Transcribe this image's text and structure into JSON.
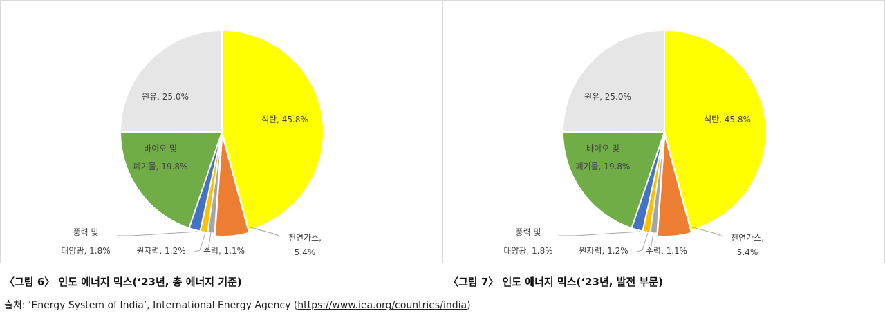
{
  "chart_data": [
    {
      "type": "pie",
      "categories": [
        "석탄",
        "천연가스",
        "수력",
        "원자력",
        "풍력 및 태양광",
        "바이오 및 폐기물",
        "원유"
      ],
      "values": [
        45.8,
        5.4,
        1.1,
        1.2,
        1.8,
        19.8,
        25.0
      ],
      "colors": [
        "#ffff00",
        "#ed7d31",
        "#a5a5a5",
        "#ffc000",
        "#4472c4",
        "#70ad47",
        "#e7e6e6"
      ],
      "data_labels": [
        [
          "석탄, 45.8%"
        ],
        [
          "천연가스,",
          "5.4%"
        ],
        [
          "수력, 1.1%"
        ],
        [
          "원자력, 1.2%"
        ],
        [
          "풍력 및",
          "태양광, 1.8%"
        ],
        [
          "바이오 및",
          "폐기물, 19.8%"
        ],
        [
          "원유, 25.0%"
        ]
      ]
    },
    {
      "type": "pie",
      "categories": [
        "석탄",
        "천연가스",
        "수력",
        "원자력",
        "풍력 및 태양광",
        "바이오 및 폐기물",
        "원유"
      ],
      "values": [
        45.8,
        5.4,
        1.1,
        1.2,
        1.8,
        19.8,
        25.0
      ],
      "colors": [
        "#ffff00",
        "#ed7d31",
        "#a5a5a5",
        "#ffc000",
        "#4472c4",
        "#70ad47",
        "#e7e6e6"
      ],
      "data_labels": [
        [
          "석탄, 45.8%"
        ],
        [
          "천연가스,",
          "5.4%"
        ],
        [
          "수력, 1.1%"
        ],
        [
          "원자력, 1.2%"
        ],
        [
          "풍력 및",
          "태양광, 1.8%"
        ],
        [
          "바이오 및",
          "폐기물, 19.8%"
        ],
        [
          "원유, 25.0%"
        ]
      ]
    }
  ],
  "captions": {
    "left": "〈그림 6〉 인도 에너지 믹스(‘23년, 총 에너지 기준)",
    "right": "〈그림 7〉 인도 에너지 믹스(‘23년, 발전 부문)"
  },
  "source": {
    "prefix": "출처: ‘Energy System of India’, International Energy Agency (",
    "link": "https://www.iea.org/countries/india",
    "suffix": ")"
  }
}
